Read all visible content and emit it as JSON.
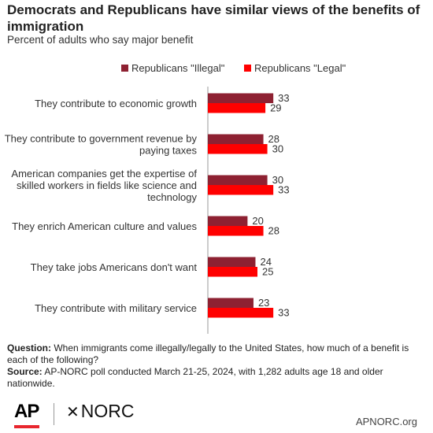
{
  "title": "Democrats and Republicans have similar views of the benefits of immigration",
  "subtitle": "Percent of adults who say major benefit",
  "colors": {
    "illegal": "#8e2132",
    "legal": "#ff0000",
    "axis": "#999999",
    "text": "#333333"
  },
  "chart_data": {
    "type": "bar",
    "orientation": "horizontal",
    "categories": [
      [
        "They contribute to economic growth"
      ],
      [
        "They contribute to government revenue by",
        "paying taxes"
      ],
      [
        "American companies get the expertise of",
        "skilled workers in fields like science and",
        "technology"
      ],
      [
        "They enrich American culture and values"
      ],
      [
        "They take jobs Americans don't want"
      ],
      [
        "They contribute with military service"
      ]
    ],
    "series": [
      {
        "name": "Republicans \"Illegal\"",
        "values": [
          33,
          28,
          30,
          20,
          24,
          23
        ],
        "color": "#8e2132"
      },
      {
        "name": "Republicans \"Legal\"",
        "values": [
          29,
          30,
          33,
          28,
          25,
          33
        ],
        "color": "#ff0000"
      }
    ],
    "xlim": [
      0,
      100
    ],
    "xticks": [
      "0",
      "25",
      "50",
      "75",
      "100"
    ],
    "xunit": "%",
    "legend": "top",
    "grid": false
  },
  "notes": {
    "question_label": "Question:",
    "question_text": " When immigrants come illegally/legally to the United States, how much of a benefit is each of the following?",
    "source_label": "Source:",
    "source_text": " AP-NORC poll conducted March 21-25, 2024, with 1,282 adults age 18 and older nationwide."
  },
  "footer": {
    "ap_logo": "AP",
    "norc_star": "✕",
    "norc_logo": "NORC",
    "site": "APNORC.org"
  }
}
